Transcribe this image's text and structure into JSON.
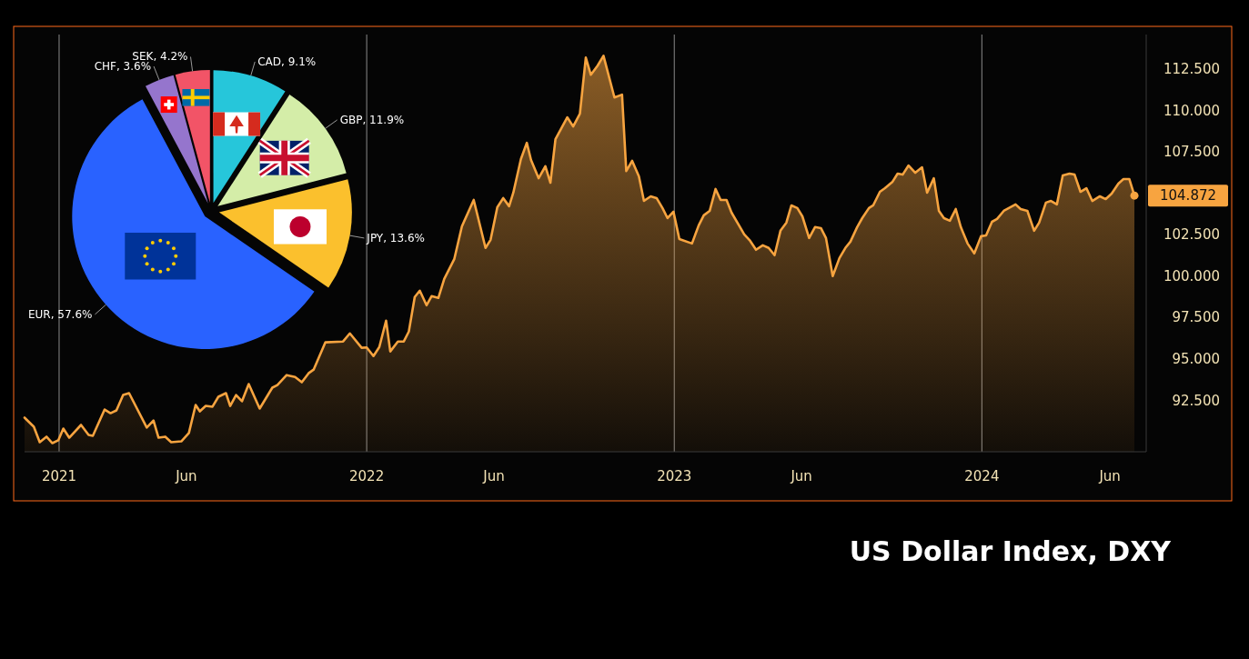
{
  "chart_data": [
    {
      "type": "area",
      "title": "US Dollar Index, DXY",
      "x": [
        "2020-11-21",
        "2020-12-02",
        "2020-12-09",
        "2020-12-17",
        "2020-12-24",
        "2020-12-31",
        "2021-01-06",
        "2021-01-13",
        "2021-01-27",
        "2021-02-05",
        "2021-02-10",
        "2021-02-24",
        "2021-03-03",
        "2021-03-10",
        "2021-03-18",
        "2021-03-25",
        "2021-04-15",
        "2021-04-23",
        "2021-04-29",
        "2021-05-07",
        "2021-05-14",
        "2021-05-26",
        "2021-06-04",
        "2021-06-12",
        "2021-06-17",
        "2021-06-24",
        "2021-07-02",
        "2021-07-09",
        "2021-07-18",
        "2021-07-23",
        "2021-07-30",
        "2021-08-06",
        "2021-08-14",
        "2021-08-27",
        "2021-09-11",
        "2021-09-17",
        "2021-09-28",
        "2021-10-08",
        "2021-10-16",
        "2021-10-24",
        "2021-10-30",
        "2021-11-13",
        "2021-12-04",
        "2021-12-12",
        "2021-12-26",
        "2022-01-01",
        "2022-01-09",
        "2022-01-16",
        "2022-01-24",
        "2022-01-29",
        "2022-02-07",
        "2022-02-14",
        "2022-02-20",
        "2022-02-27",
        "2022-03-05",
        "2022-03-13",
        "2022-03-19",
        "2022-03-27",
        "2022-04-03",
        "2022-04-15",
        "2022-04-24",
        "2022-05-08",
        "2022-05-22",
        "2022-05-28",
        "2022-06-05",
        "2022-06-12",
        "2022-06-19",
        "2022-06-24",
        "2022-07-03",
        "2022-07-10",
        "2022-07-15",
        "2022-07-24",
        "2022-08-01",
        "2022-08-07",
        "2022-08-13",
        "2022-08-27",
        "2022-09-03",
        "2022-09-11",
        "2022-09-18",
        "2022-09-24",
        "2022-10-02",
        "2022-10-09",
        "2022-10-22",
        "2022-10-31",
        "2022-11-05",
        "2022-11-12",
        "2022-11-20",
        "2022-11-26",
        "2022-12-04",
        "2022-12-11",
        "2022-12-18",
        "2022-12-24",
        "2022-12-31",
        "2023-01-07",
        "2023-01-22",
        "2023-01-30",
        "2023-02-05",
        "2023-02-12",
        "2023-02-19",
        "2023-02-25",
        "2023-03-04",
        "2023-03-10",
        "2023-03-25",
        "2023-04-01",
        "2023-04-08",
        "2023-04-16",
        "2023-04-23",
        "2023-04-30",
        "2023-05-07",
        "2023-05-14",
        "2023-05-20",
        "2023-05-27",
        "2023-06-02",
        "2023-06-10",
        "2023-06-17",
        "2023-06-24",
        "2023-06-30",
        "2023-07-08",
        "2023-07-16",
        "2023-07-23",
        "2023-07-29",
        "2023-08-06",
        "2023-08-12",
        "2023-08-20",
        "2023-08-25",
        "2023-09-02",
        "2023-09-08",
        "2023-09-17",
        "2023-09-23",
        "2023-09-29",
        "2023-10-06",
        "2023-10-14",
        "2023-10-22",
        "2023-10-28",
        "2023-11-05",
        "2023-11-11",
        "2023-11-17",
        "2023-11-24",
        "2023-12-01",
        "2023-12-07",
        "2023-12-15",
        "2023-12-23",
        "2023-12-31",
        "2024-01-06",
        "2024-01-13",
        "2024-01-19",
        "2024-01-27",
        "2024-02-10",
        "2024-02-16",
        "2024-02-24",
        "2024-03-03",
        "2024-03-09",
        "2024-03-17",
        "2024-03-23",
        "2024-03-30",
        "2024-04-06",
        "2024-04-14",
        "2024-04-20",
        "2024-04-27",
        "2024-05-04",
        "2024-05-11",
        "2024-05-20",
        "2024-05-27",
        "2024-06-03",
        "2024-06-11",
        "2024-06-17",
        "2024-06-24",
        "2024-06-30"
      ],
      "series": [
        {
          "color": "#f7a440",
          "values": [
            91.46,
            90.91,
            89.98,
            90.31,
            89.92,
            90.09,
            90.8,
            90.25,
            91.02,
            90.42,
            90.36,
            91.95,
            91.73,
            91.9,
            92.83,
            92.94,
            90.86,
            91.29,
            90.25,
            90.31,
            89.98,
            90.03,
            90.53,
            92.23,
            91.84,
            92.17,
            92.12,
            92.72,
            92.94,
            92.17,
            92.83,
            92.45,
            93.49,
            92.01,
            93.27,
            93.43,
            94.03,
            93.92,
            93.6,
            94.14,
            94.36,
            96.01,
            96.06,
            96.55,
            95.68,
            95.7,
            95.18,
            95.73,
            97.32,
            95.46,
            96.06,
            96.06,
            96.66,
            98.75,
            99.13,
            98.25,
            98.8,
            98.69,
            99.84,
            101.05,
            103.02,
            104.61,
            101.71,
            102.2,
            104.17,
            104.72,
            104.23,
            105.05,
            107.08,
            108.06,
            107.02,
            105.92,
            106.64,
            105.65,
            108.28,
            109.6,
            109.05,
            109.82,
            113.21,
            112.17,
            112.72,
            113.32,
            110.8,
            110.97,
            106.36,
            106.97,
            106.03,
            104.55,
            104.83,
            104.72,
            104.12,
            103.51,
            103.9,
            102.25,
            101.98,
            103.08,
            103.68,
            103.95,
            105.27,
            104.61,
            104.61,
            103.84,
            102.53,
            102.14,
            101.6,
            101.87,
            101.71,
            101.27,
            102.75,
            103.24,
            104.28,
            104.12,
            103.62,
            102.31,
            102.97,
            102.91,
            102.31,
            100.01,
            101.1,
            101.71,
            102.09,
            102.97,
            103.51,
            104.12,
            104.28,
            105.1,
            105.32,
            105.71,
            106.2,
            106.14,
            106.69,
            106.25,
            106.58,
            105.05,
            105.92,
            103.95,
            103.51,
            103.35,
            104.06,
            102.97,
            101.98,
            101.38,
            102.42,
            102.47,
            103.29,
            103.46,
            103.95,
            104.34,
            104.06,
            103.95,
            102.75,
            103.24,
            104.45,
            104.55,
            104.34,
            106.09,
            106.2,
            106.14,
            105.1,
            105.32,
            104.55,
            104.83,
            104.66,
            104.99,
            105.6,
            105.87,
            105.87,
            104.872
          ]
        }
      ],
      "xlim": [
        "2020-11-21",
        "2024-07-14"
      ],
      "xticks": [
        {
          "value": "2021-01-01",
          "label": "2021"
        },
        {
          "value": "2021-06-01",
          "label": "Jun"
        },
        {
          "value": "2022-01-01",
          "label": "2022"
        },
        {
          "value": "2022-06-01",
          "label": "Jun"
        },
        {
          "value": "2023-01-01",
          "label": "2023"
        },
        {
          "value": "2023-06-01",
          "label": "Jun"
        },
        {
          "value": "2024-01-01",
          "label": "2024"
        },
        {
          "value": "2024-06-01",
          "label": "Jun"
        }
      ],
      "ylim": [
        89.4,
        114.6
      ],
      "yticks": [
        {
          "value": 92.5,
          "label": "92.500"
        },
        {
          "value": 95,
          "label": "95.000"
        },
        {
          "value": 97.5,
          "label": "97.500"
        },
        {
          "value": 100,
          "label": "100.000"
        },
        {
          "value": 102.5,
          "label": "102.500"
        },
        {
          "value": 107.5,
          "label": "107.500"
        },
        {
          "value": 110,
          "label": "110.000"
        },
        {
          "value": 112.5,
          "label": "112.500"
        }
      ],
      "ref_lines": [
        {
          "axis": "x",
          "value": "2021-01-01",
          "color": "#8a8a8a"
        },
        {
          "axis": "x",
          "value": "2022-01-01",
          "color": "#8a8a8a"
        },
        {
          "axis": "x",
          "value": "2023-01-01",
          "color": "#8a8a8a"
        },
        {
          "axis": "x",
          "value": "2024-01-01",
          "color": "#8a8a8a"
        }
      ],
      "annotations": [
        {
          "text": "104.872",
          "x": "2024-06-30",
          "y": 104.872
        }
      ]
    },
    {
      "type": "pie",
      "categories": [
        "CAD, 9.1%",
        "GBP, 11.9%",
        "JPY, 13.6%",
        "EUR, 57.6%",
        "CHF, 3.6%",
        "SEK, 4.2%"
      ],
      "values": [
        9.1,
        11.9,
        13.6,
        57.6,
        3.6,
        4.2
      ],
      "colors": [
        "#26c6da",
        "#d4eda8",
        "#fbc02d",
        "#2962ff",
        "#9575cd",
        "#f25467"
      ]
    }
  ]
}
